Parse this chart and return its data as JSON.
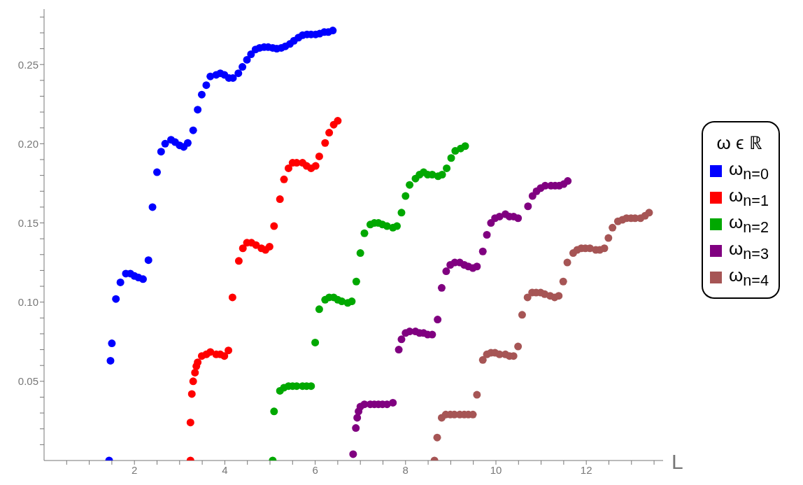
{
  "chart_data": {
    "type": "scatter",
    "xlabel": "L",
    "legend_title": "ω ϵ ℝ",
    "legend": "right",
    "marker": "circle",
    "xlim": [
      0,
      13.7
    ],
    "ylim": [
      0,
      0.285
    ],
    "xticks": [
      {
        "value": 0.5,
        "label": null
      },
      {
        "value": 1,
        "label": null
      },
      {
        "value": 1.5,
        "label": null
      },
      2,
      {
        "value": 2.5,
        "label": null
      },
      {
        "value": 3,
        "label": null
      },
      {
        "value": 3.5,
        "label": null
      },
      4,
      {
        "value": 4.5,
        "label": null
      },
      {
        "value": 5,
        "label": null
      },
      {
        "value": 5.5,
        "label": null
      },
      6,
      {
        "value": 6.5,
        "label": null
      },
      {
        "value": 7,
        "label": null
      },
      {
        "value": 7.5,
        "label": null
      },
      8,
      {
        "value": 8.5,
        "label": null
      },
      {
        "value": 9,
        "label": null
      },
      {
        "value": 9.5,
        "label": null
      },
      10,
      {
        "value": 10.5,
        "label": null
      },
      {
        "value": 11,
        "label": null
      },
      {
        "value": 11.5,
        "label": null
      },
      12,
      {
        "value": 12.5,
        "label": null
      },
      {
        "value": 13,
        "label": null
      },
      {
        "value": 13.5,
        "label": null
      }
    ],
    "yticks": [
      {
        "value": 0.01,
        "label": null
      },
      {
        "value": 0.02,
        "label": null
      },
      {
        "value": 0.03,
        "label": null
      },
      {
        "value": 0.04,
        "label": null
      },
      0.05,
      {
        "value": 0.06,
        "label": null
      },
      {
        "value": 0.07,
        "label": null
      },
      {
        "value": 0.08,
        "label": null
      },
      {
        "value": 0.09,
        "label": null
      },
      {
        "value": 0.1,
        "label": "0.10"
      },
      {
        "value": 0.11,
        "label": null
      },
      {
        "value": 0.12,
        "label": null
      },
      {
        "value": 0.13,
        "label": null
      },
      {
        "value": 0.14,
        "label": null
      },
      0.15,
      {
        "value": 0.16,
        "label": null
      },
      {
        "value": 0.17,
        "label": null
      },
      {
        "value": 0.18,
        "label": null
      },
      {
        "value": 0.19,
        "label": null
      },
      {
        "value": 0.2,
        "label": "0.20"
      },
      {
        "value": 0.21,
        "label": null
      },
      {
        "value": 0.22,
        "label": null
      },
      {
        "value": 0.23,
        "label": null
      },
      {
        "value": 0.24,
        "label": null
      },
      0.25,
      {
        "value": 0.26,
        "label": null
      },
      {
        "value": 0.27,
        "label": null
      },
      {
        "value": 0.28,
        "label": null
      }
    ],
    "series": [
      {
        "name": "ω$_{n=0}$",
        "color": "#0000ff",
        "x": [
          1.44,
          1.47,
          1.5,
          1.59,
          1.69,
          1.81,
          1.91,
          2.0,
          2.09,
          2.19,
          2.31,
          2.4,
          2.5,
          2.59,
          2.68,
          2.81,
          2.9,
          3.0,
          3.09,
          3.18,
          3.3,
          3.4,
          3.49,
          3.59,
          3.68,
          3.81,
          3.9,
          3.99,
          4.09,
          4.18,
          4.3,
          4.39,
          4.49,
          4.58,
          4.68,
          4.77,
          4.87,
          4.96,
          5.06,
          5.15,
          5.25,
          5.34,
          5.44,
          5.53,
          5.63,
          5.72,
          5.82,
          5.91,
          6.01,
          6.1,
          6.2,
          6.29,
          6.39
        ],
        "values": [
          0,
          0.063,
          0.074,
          0.102,
          0.1125,
          0.118,
          0.118,
          0.1165,
          0.1155,
          0.1145,
          0.1265,
          0.16,
          0.182,
          0.195,
          0.2,
          0.2025,
          0.201,
          0.199,
          0.198,
          0.2005,
          0.2085,
          0.2215,
          0.231,
          0.237,
          0.2425,
          0.2435,
          0.2445,
          0.2435,
          0.2415,
          0.2415,
          0.2445,
          0.2485,
          0.253,
          0.2565,
          0.2595,
          0.2605,
          0.261,
          0.261,
          0.2605,
          0.26,
          0.2605,
          0.2615,
          0.263,
          0.265,
          0.267,
          0.2685,
          0.269,
          0.269,
          0.269,
          0.2695,
          0.2705,
          0.2705,
          0.2715
        ]
      },
      {
        "name": "ω$_{n=1}$",
        "color": "#ff0000",
        "x": [
          3.24,
          3.24,
          3.27,
          3.3,
          3.34,
          3.37,
          3.4,
          3.49,
          3.59,
          3.68,
          3.81,
          3.9,
          3.99,
          4.08,
          4.17,
          4.31,
          4.4,
          4.49,
          4.59,
          4.69,
          4.81,
          4.9,
          4.99,
          5.09,
          5.22,
          5.31,
          5.41,
          5.5,
          5.59,
          5.72,
          5.81,
          5.91,
          6.01,
          6.09,
          6.22,
          6.31,
          6.41,
          6.5
        ],
        "values": [
          0,
          0.024,
          0.042,
          0.05,
          0.0555,
          0.0595,
          0.062,
          0.066,
          0.067,
          0.0685,
          0.067,
          0.067,
          0.066,
          0.0695,
          0.103,
          0.126,
          0.134,
          0.1375,
          0.1375,
          0.136,
          0.134,
          0.133,
          0.135,
          0.148,
          0.165,
          0.1775,
          0.1845,
          0.188,
          0.188,
          0.188,
          0.186,
          0.1845,
          0.186,
          0.192,
          0.2005,
          0.207,
          0.212,
          0.2145
        ]
      },
      {
        "name": "ω$_{n=2}$",
        "color": "#00a800",
        "x": [
          5.06,
          5.09,
          5.22,
          5.31,
          5.41,
          5.5,
          5.59,
          5.72,
          5.81,
          5.91,
          6.0,
          6.09,
          6.22,
          6.31,
          6.41,
          6.5,
          6.59,
          6.72,
          6.81,
          6.91,
          7.0,
          7.09,
          7.22,
          7.31,
          7.4,
          7.49,
          7.59,
          7.72,
          7.81,
          7.91,
          8.0,
          8.09,
          8.22,
          8.31,
          8.4,
          8.49,
          8.59,
          8.72,
          8.81,
          8.91,
          9.01,
          9.1,
          9.22,
          9.32
        ],
        "values": [
          0,
          0.031,
          0.044,
          0.046,
          0.047,
          0.047,
          0.047,
          0.047,
          0.047,
          0.047,
          0.0745,
          0.0955,
          0.1015,
          0.103,
          0.103,
          0.1015,
          0.1005,
          0.0995,
          0.1005,
          0.113,
          0.131,
          0.1435,
          0.149,
          0.15,
          0.15,
          0.149,
          0.148,
          0.147,
          0.148,
          0.1565,
          0.167,
          0.174,
          0.178,
          0.1805,
          0.182,
          0.1805,
          0.1805,
          0.1795,
          0.1805,
          0.1845,
          0.191,
          0.1955,
          0.197,
          0.1985
        ]
      },
      {
        "name": "ω$_{n=3}$",
        "color": "#800080",
        "x": [
          6.84,
          6.9,
          6.93,
          6.96,
          7.0,
          7.09,
          7.22,
          7.31,
          7.4,
          7.49,
          7.59,
          7.72,
          7.85,
          7.91,
          8.0,
          8.09,
          8.22,
          8.31,
          8.4,
          8.49,
          8.59,
          8.71,
          8.8,
          8.9,
          8.99,
          9.09,
          9.2,
          9.3,
          9.39,
          9.49,
          9.58,
          9.71,
          9.8,
          9.89,
          9.98,
          10.08,
          10.21,
          10.3,
          10.39,
          10.49,
          10.71,
          10.81,
          10.9,
          10.99,
          11.09,
          11.22,
          11.31,
          11.4,
          11.5,
          11.59
        ],
        "values": [
          0.004,
          0.0205,
          0.027,
          0.031,
          0.034,
          0.0355,
          0.0355,
          0.0355,
          0.0355,
          0.0355,
          0.0355,
          0.0365,
          0.07,
          0.0765,
          0.0805,
          0.0815,
          0.0815,
          0.0805,
          0.0805,
          0.0795,
          0.0795,
          0.089,
          0.109,
          0.1195,
          0.1235,
          0.125,
          0.125,
          0.1235,
          0.1225,
          0.1215,
          0.1225,
          0.132,
          0.1425,
          0.15,
          0.153,
          0.154,
          0.1555,
          0.154,
          0.154,
          0.153,
          0.1605,
          0.167,
          0.17,
          0.172,
          0.1735,
          0.1735,
          0.1735,
          0.1735,
          0.1745,
          0.1765
        ]
      },
      {
        "name": "ω$_{n=4}$",
        "color": "#a65555",
        "x": [
          8.64,
          8.7,
          8.8,
          8.89,
          8.99,
          9.08,
          9.2,
          9.3,
          9.39,
          9.49,
          9.58,
          9.71,
          9.8,
          9.89,
          9.98,
          10.08,
          10.21,
          10.3,
          10.39,
          10.49,
          10.58,
          10.7,
          10.8,
          10.89,
          10.99,
          11.08,
          11.2,
          11.3,
          11.39,
          11.49,
          11.58,
          11.71,
          11.8,
          11.89,
          11.98,
          12.08,
          12.21,
          12.3,
          12.4,
          12.49,
          12.58,
          12.7,
          12.8,
          12.89,
          12.99,
          13.08,
          13.2,
          13.3,
          13.39
        ],
        "values": [
          0,
          0.0145,
          0.027,
          0.029,
          0.029,
          0.029,
          0.029,
          0.029,
          0.029,
          0.029,
          0.0415,
          0.0635,
          0.067,
          0.068,
          0.068,
          0.067,
          0.067,
          0.066,
          0.066,
          0.072,
          0.092,
          0.103,
          0.106,
          0.106,
          0.106,
          0.105,
          0.104,
          0.103,
          0.104,
          0.113,
          0.125,
          0.131,
          0.133,
          0.134,
          0.134,
          0.134,
          0.133,
          0.133,
          0.134,
          0.1405,
          0.147,
          0.151,
          0.152,
          0.153,
          0.153,
          0.153,
          0.153,
          0.1545,
          0.1565
        ]
      }
    ]
  }
}
